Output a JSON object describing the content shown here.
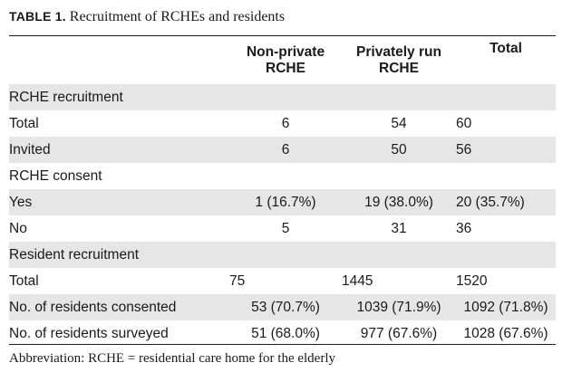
{
  "caption": {
    "label": "TABLE 1.",
    "title": "Recruitment of RCHEs and residents"
  },
  "columns": {
    "col1": {
      "line1": "Non-private",
      "line2": "RCHE"
    },
    "col2": {
      "line1": "Privately run",
      "line2": "RCHE"
    },
    "col3": {
      "line1": "Total"
    }
  },
  "rows": [
    {
      "label": "RCHE recruitment",
      "cells": []
    },
    {
      "label": "Total",
      "cells": [
        "6",
        "54",
        "60"
      ]
    },
    {
      "label": "Invited",
      "cells": [
        "6",
        "50",
        "56"
      ]
    },
    {
      "label": "RCHE consent",
      "cells": []
    },
    {
      "label": "Yes",
      "cells": [
        "1 (16.7%)",
        "19 (38.0%)",
        "20 (35.7%)"
      ]
    },
    {
      "label": "No",
      "cells": [
        "5",
        "31",
        "36"
      ]
    },
    {
      "label": "Resident recruitment",
      "cells": []
    },
    {
      "label": "Total",
      "cells": [
        "75",
        "1445",
        "1520"
      ]
    },
    {
      "label": "No. of residents consented",
      "cells": [
        "53 (70.7%)",
        "1039 (71.9%)",
        "1092 (71.8%)"
      ]
    },
    {
      "label": "No. of residents surveyed",
      "cells": [
        "51 (68.0%)",
        "977 (67.6%)",
        "1028 (67.6%)"
      ]
    }
  ],
  "footnote": "Abbreviation: RCHE = residential care home for the elderly",
  "colors": {
    "shade": "#e6e6e6",
    "text": "#1a1a1a"
  }
}
